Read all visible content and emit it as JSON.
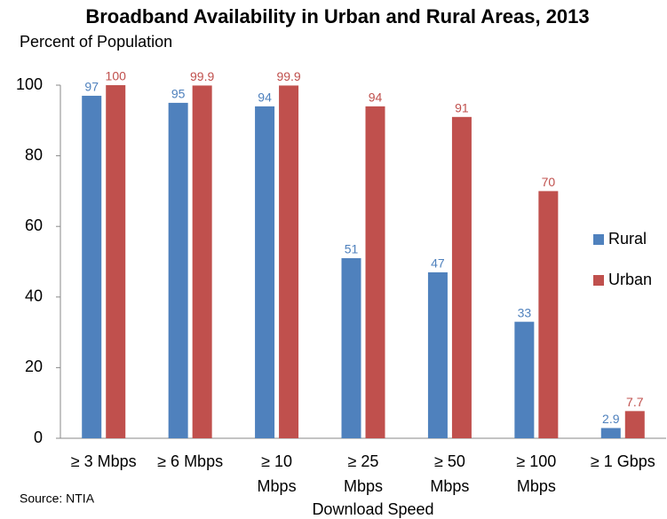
{
  "chart_data": {
    "type": "bar",
    "title": "Broadband Availability in Urban and Rural Areas, 2013",
    "subtitle": "Percent of Population",
    "x_label": "Download Speed",
    "source": "Source: NTIA",
    "categories": [
      "≥ 3 Mbps",
      "≥ 6 Mbps",
      "≥ 10\nMbps",
      "≥ 25\nMbps",
      "≥ 50\nMbps",
      "≥ 100\nMbps",
      "≥ 1 Gbps"
    ],
    "series": [
      {
        "name": "Rural",
        "color": "#4f81bd",
        "values": [
          97,
          95,
          94,
          51,
          47,
          33,
          2.9
        ]
      },
      {
        "name": "Urban",
        "color": "#c0504d",
        "values": [
          100,
          99.9,
          99.9,
          94,
          91,
          70,
          7.7
        ]
      }
    ],
    "ylim": [
      0,
      100
    ],
    "yticks": [
      0,
      20,
      40,
      60,
      80,
      100
    ],
    "grid": false,
    "legend": "right"
  }
}
